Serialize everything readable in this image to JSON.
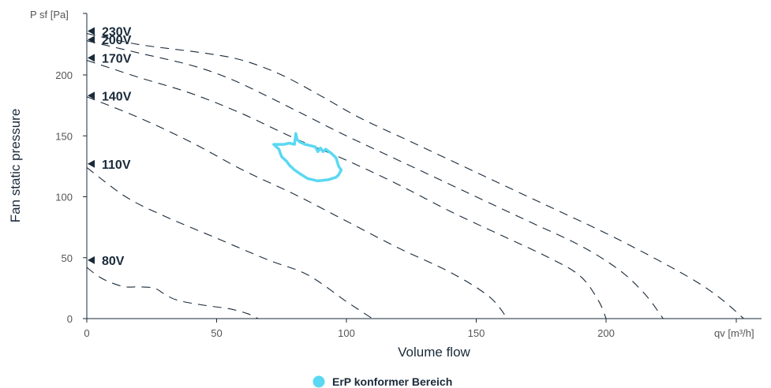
{
  "chart_data": {
    "type": "line",
    "xlabel": "Volume flow",
    "ylabel": "Fan static pressure",
    "x_unit": "qv [m³/h]",
    "y_unit": "P sf [Pa]",
    "xlim": [
      0,
      250
    ],
    "ylim": [
      0,
      250
    ],
    "x_ticks": [
      0,
      50,
      100,
      150,
      200
    ],
    "y_ticks": [
      0,
      50,
      100,
      150,
      200
    ],
    "grid": false,
    "series": [
      {
        "name": "230V",
        "label_y": 236,
        "x": [
          0,
          20,
          45,
          60,
          75,
          90,
          105,
          125,
          150,
          175,
          200,
          220,
          235,
          245,
          253
        ],
        "y": [
          234,
          225,
          218,
          212,
          200,
          183,
          165,
          145,
          120,
          95,
          70,
          48,
          30,
          15,
          0
        ]
      },
      {
        "name": "200V",
        "label_y": 229,
        "x": [
          0,
          20,
          40,
          55,
          70,
          85,
          100,
          120,
          145,
          170,
          190,
          205,
          215,
          222
        ],
        "y": [
          228,
          218,
          208,
          197,
          182,
          166,
          150,
          130,
          105,
          80,
          60,
          40,
          20,
          0
        ]
      },
      {
        "name": "170V",
        "label_y": 214,
        "x": [
          0,
          20,
          40,
          60,
          80,
          100,
          120,
          140,
          160,
          178,
          190,
          197,
          200
        ],
        "y": [
          212,
          198,
          185,
          168,
          148,
          130,
          110,
          88,
          68,
          50,
          35,
          15,
          0
        ]
      },
      {
        "name": "140V",
        "label_y": 183,
        "x": [
          0,
          20,
          40,
          60,
          80,
          100,
          120,
          140,
          155,
          162
        ],
        "y": [
          182,
          165,
          145,
          122,
          102,
          80,
          58,
          38,
          18,
          0
        ]
      },
      {
        "name": "110V",
        "label_y": 127,
        "x": [
          0,
          15,
          30,
          50,
          70,
          85,
          100,
          110
        ],
        "y": [
          124,
          100,
          84,
          66,
          48,
          36,
          14,
          0
        ]
      },
      {
        "name": "80V",
        "label_y": 48,
        "x": [
          0,
          5,
          10,
          15,
          20,
          26,
          30,
          35,
          45,
          55,
          62,
          66
        ],
        "y": [
          42,
          34,
          29,
          26,
          26,
          25,
          20,
          15,
          11,
          8,
          4,
          0
        ]
      }
    ],
    "erp_region": {
      "name": "ErP konformer Bereich",
      "color": "#5ad8f2",
      "x": [
        72,
        76,
        78,
        80,
        80.5,
        81,
        82,
        84,
        86,
        88,
        89,
        90,
        91,
        92,
        94,
        96,
        97,
        98,
        97,
        96,
        93,
        89,
        85,
        82,
        80,
        78,
        77,
        76,
        75,
        74.5,
        74,
        73,
        72
      ],
      "y": [
        143,
        143,
        144,
        143,
        152,
        147,
        145,
        143,
        142,
        141,
        137,
        140,
        137,
        139,
        136,
        132,
        125,
        122,
        118,
        116,
        114,
        113,
        115,
        119,
        122,
        126,
        129,
        131,
        133,
        136,
        139,
        141,
        143
      ]
    }
  },
  "legend": {
    "label": "ErP konformer Bereich",
    "color": "#5ad8f2"
  },
  "colors": {
    "axis": "#1a2a3a",
    "ticks": "#555555"
  }
}
